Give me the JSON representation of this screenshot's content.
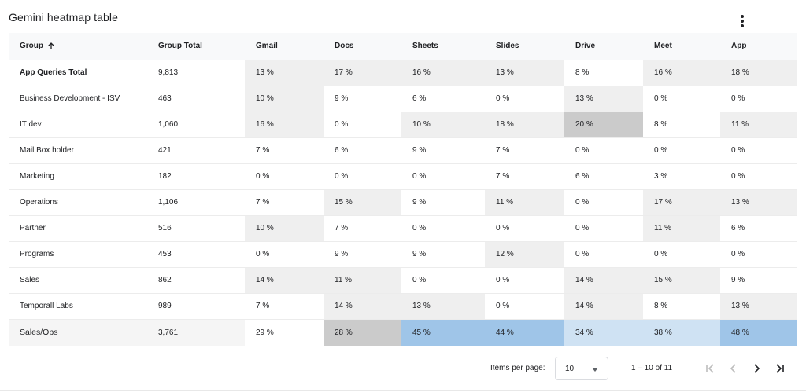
{
  "card": {
    "title": "Gemini heatmap table",
    "menu_icon": "more-vert-icon"
  },
  "table": {
    "sort_icon": "arrow-up-icon",
    "columns": [
      "Group",
      "Group Total",
      "Gmail",
      "Docs",
      "Sheets",
      "Slides",
      "Drive",
      "Meet",
      "App"
    ],
    "rows": [
      {
        "group": "App Queries Total",
        "total": "9,813",
        "cells": [
          "13 %",
          "17 %",
          "16 %",
          "13 %",
          "8 %",
          "16 %",
          "18 %"
        ]
      },
      {
        "group": "Business Development - ISV",
        "total": "463",
        "cells": [
          "10 %",
          "9 %",
          "6 %",
          "0 %",
          "13 %",
          "0 %",
          "0 %"
        ]
      },
      {
        "group": "IT dev",
        "total": "1,060",
        "cells": [
          "16 %",
          "0 %",
          "10 %",
          "18 %",
          "20 %",
          "8 %",
          "11 %"
        ]
      },
      {
        "group": "Mail Box holder",
        "total": "421",
        "cells": [
          "7 %",
          "6 %",
          "9 %",
          "7 %",
          "0 %",
          "0 %",
          "0 %"
        ]
      },
      {
        "group": "Marketing",
        "total": "182",
        "cells": [
          "0 %",
          "0 %",
          "0 %",
          "7 %",
          "6 %",
          "3 %",
          "0 %"
        ]
      },
      {
        "group": "Operations",
        "total": "1,106",
        "cells": [
          "7 %",
          "15 %",
          "9 %",
          "11 %",
          "0 %",
          "17 %",
          "13 %"
        ]
      },
      {
        "group": "Partner",
        "total": "516",
        "cells": [
          "10 %",
          "7 %",
          "0 %",
          "0 %",
          "0 %",
          "11 %",
          "6 %"
        ]
      },
      {
        "group": "Programs",
        "total": "453",
        "cells": [
          "0 %",
          "9 %",
          "9 %",
          "12 %",
          "0 %",
          "0 %",
          "0 %"
        ]
      },
      {
        "group": "Sales",
        "total": "862",
        "cells": [
          "14 %",
          "11 %",
          "0 %",
          "0 %",
          "14 %",
          "15 %",
          "9 %"
        ]
      },
      {
        "group": "Temporall Labs",
        "total": "989",
        "cells": [
          "7 %",
          "14 %",
          "13 %",
          "0 %",
          "14 %",
          "8 %",
          "13 %"
        ]
      },
      {
        "group": "Sales/Ops",
        "total": "3,761",
        "cells": [
          "29 %",
          "28 %",
          "45 %",
          "44 %",
          "34 %",
          "38 %",
          "48 %"
        ]
      }
    ],
    "cell_bg": [
      [
        "#efefef",
        "#efefef",
        "#efefef",
        "#efefef",
        "#ffffff",
        "#efefef",
        "#efefef"
      ],
      [
        "#efefef",
        "#ffffff",
        "#ffffff",
        "#ffffff",
        "#efefef",
        "#ffffff",
        "#ffffff"
      ],
      [
        "#efefef",
        "#ffffff",
        "#efefef",
        "#efefef",
        "#cbcbcb",
        "#ffffff",
        "#efefef"
      ],
      [
        "#ffffff",
        "#ffffff",
        "#ffffff",
        "#ffffff",
        "#ffffff",
        "#ffffff",
        "#ffffff"
      ],
      [
        "#ffffff",
        "#ffffff",
        "#ffffff",
        "#ffffff",
        "#ffffff",
        "#ffffff",
        "#ffffff"
      ],
      [
        "#ffffff",
        "#efefef",
        "#ffffff",
        "#efefef",
        "#ffffff",
        "#efefef",
        "#efefef"
      ],
      [
        "#efefef",
        "#ffffff",
        "#ffffff",
        "#ffffff",
        "#ffffff",
        "#efefef",
        "#ffffff"
      ],
      [
        "#ffffff",
        "#ffffff",
        "#ffffff",
        "#efefef",
        "#ffffff",
        "#ffffff",
        "#ffffff"
      ],
      [
        "#efefef",
        "#efefef",
        "#ffffff",
        "#ffffff",
        "#efefef",
        "#efefef",
        "#ffffff"
      ],
      [
        "#ffffff",
        "#efefef",
        "#efefef",
        "#ffffff",
        "#efefef",
        "#ffffff",
        "#efefef"
      ],
      [
        "#ffffff",
        "#cbcbcb",
        "#9fc5e8",
        "#9fc5e8",
        "#cfe2f3",
        "#cfe2f3",
        "#9fc5e8"
      ]
    ],
    "group_bg": [
      "#ffffff",
      "#ffffff",
      "#ffffff",
      "#ffffff",
      "#ffffff",
      "#ffffff",
      "#ffffff",
      "#ffffff",
      "#ffffff",
      "#ffffff",
      "#f5f5f5"
    ]
  },
  "paginator": {
    "items_per_page_label": "Items per page:",
    "items_per_page_value": "10",
    "range_label": "1 – 10 of 11",
    "first_page_icon": "first-page-icon",
    "prev_page_icon": "chevron-left-icon",
    "next_page_icon": "chevron-right-icon",
    "last_page_icon": "last-page-icon",
    "disabled_color": "#bdbdbd",
    "enabled_color": "#202124"
  }
}
